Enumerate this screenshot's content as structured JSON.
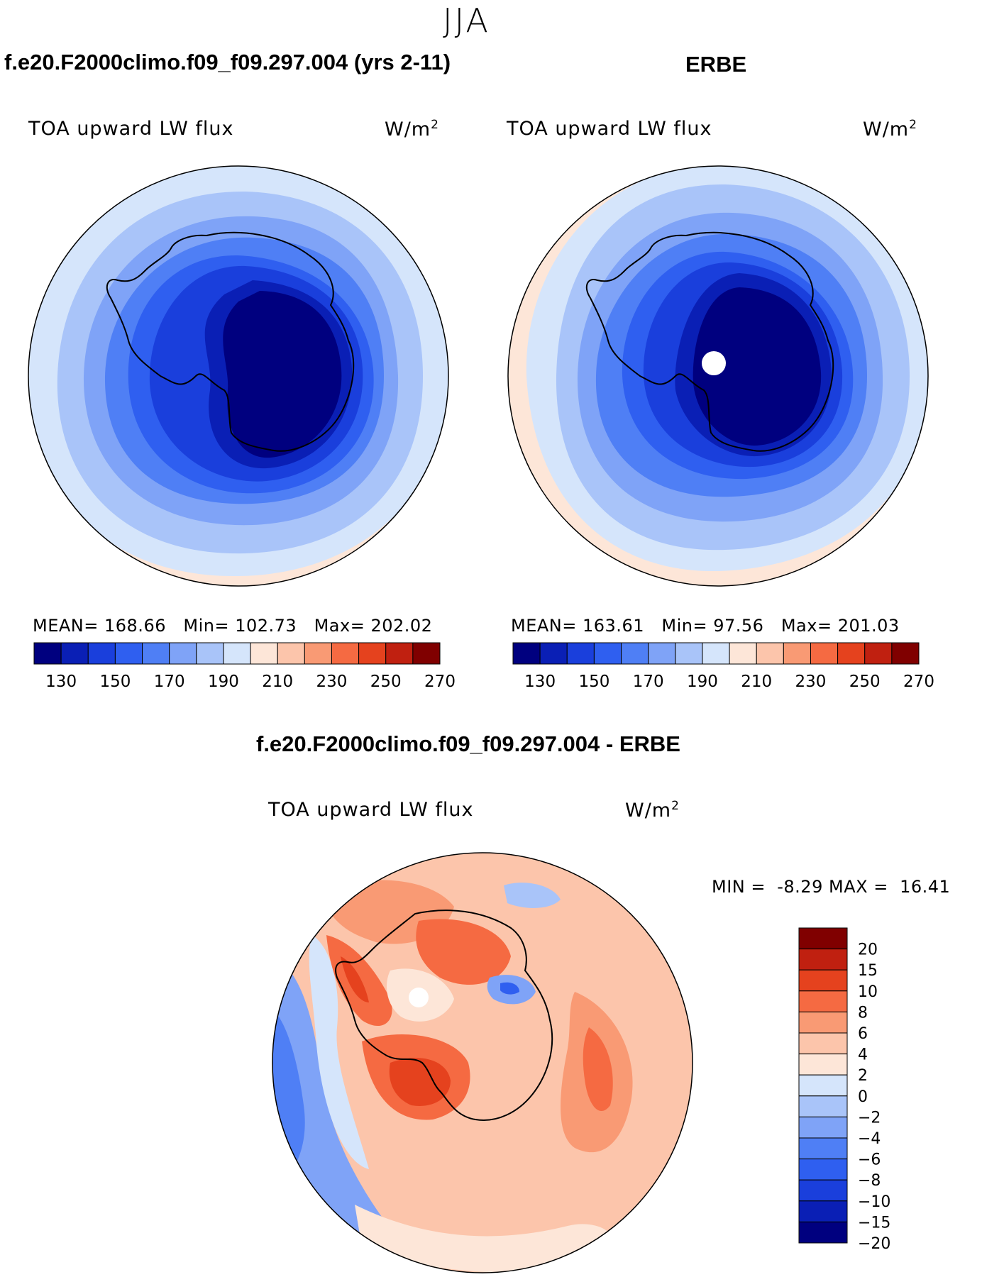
{
  "figure": {
    "season": "JJA",
    "diff_title": "f.e20.F2000climo.f09_f09.297.004 - ERBE"
  },
  "panels": [
    {
      "title": "f.e20.F2000climo.f09_f09.297.004 (yrs 2-11)",
      "variable": "TOA upward LW flux",
      "units": "W/m",
      "units_exp": "2",
      "stats": {
        "mean_label": "MEAN=",
        "mean": "168.66",
        "min_label": "Min=",
        "min": "102.73",
        "max_label": "Max=",
        "max": "202.02"
      }
    },
    {
      "title": "ERBE",
      "variable": "TOA upward LW flux",
      "units": "W/m",
      "units_exp": "2",
      "stats": {
        "mean_label": "MEAN=",
        "mean": "163.61",
        "min_label": "Min=",
        "min": "97.56",
        "max_label": "Max=",
        "max": "201.03"
      }
    },
    {
      "variable": "TOA upward LW flux",
      "units": "W/m",
      "units_exp": "2",
      "stats_text": {
        "min_label": "MIN =",
        "min": "-8.29",
        "max_label": "MAX =",
        "max": "16.41"
      }
    }
  ],
  "colors": {
    "abs_scale": [
      "#00007f",
      "#0a1fb5",
      "#1a3fdc",
      "#2f5ff0",
      "#4f7ff5",
      "#7fa3f7",
      "#a9c4f9",
      "#d5e5fb",
      "#fde6d8",
      "#fcc5ab",
      "#f99a74",
      "#f56a42",
      "#e5421e",
      "#c02010",
      "#800000"
    ],
    "diff_scale": [
      "#00007f",
      "#0a1fb5",
      "#1a3fdc",
      "#2f5ff0",
      "#4f7ff5",
      "#7fa3f7",
      "#a9c4f9",
      "#d5e5fb",
      "#fde6d8",
      "#fcc5ab",
      "#f99a74",
      "#f56a42",
      "#e5421e",
      "#c02010",
      "#800000"
    ],
    "missing": "#ffffff",
    "coast": "#000000"
  },
  "chart_data": [
    {
      "type": "heatmap",
      "projection": "south polar stereographic",
      "title": "f.e20.F2000climo.f09_f09.297.004 (yrs 2-11)",
      "variable": "TOA upward LW flux",
      "units": "W/m2",
      "levels": [
        130,
        140,
        150,
        160,
        170,
        180,
        190,
        200,
        210,
        220,
        230,
        240,
        250,
        260
      ],
      "colorbar_tick_labels": [
        "130",
        "150",
        "170",
        "190",
        "210",
        "230",
        "250",
        "270"
      ],
      "mean": 168.66,
      "min": 102.73,
      "max": 202.02,
      "approx_field_by_region": {
        "east_antarctic_plateau": 115,
        "antarctic_coast": 145,
        "southern_ocean_60S": 165,
        "ocean_50S": 180,
        "outer_edge_40S": 195
      }
    },
    {
      "type": "heatmap",
      "projection": "south polar stereographic",
      "title": "ERBE",
      "variable": "TOA upward LW flux",
      "units": "W/m2",
      "levels": [
        130,
        140,
        150,
        160,
        170,
        180,
        190,
        200,
        210,
        220,
        230,
        240,
        250,
        260
      ],
      "colorbar_tick_labels": [
        "130",
        "150",
        "170",
        "190",
        "210",
        "230",
        "250",
        "270"
      ],
      "mean": 163.61,
      "min": 97.56,
      "max": 201.03,
      "approx_field_by_region": {
        "east_antarctic_plateau": 110,
        "antarctic_coast": 140,
        "southern_ocean_60S": 160,
        "ocean_50S": 178,
        "outer_edge_40S": 200
      },
      "missing_region": "south pole"
    },
    {
      "type": "heatmap",
      "projection": "south polar stereographic",
      "title": "f.e20.F2000climo.f09_f09.297.004 - ERBE",
      "variable": "TOA upward LW flux",
      "units": "W/m2",
      "levels": [
        -20,
        -15,
        -10,
        -8,
        -6,
        -4,
        -2,
        0,
        2,
        4,
        6,
        8,
        10,
        15,
        20
      ],
      "colorbar_tick_labels": [
        "20",
        "15",
        "10",
        "8",
        "6",
        "4",
        "2",
        "0",
        "−2",
        "−4",
        "−6",
        "−8",
        "−10",
        "−15",
        "−20"
      ],
      "min": -8.29,
      "max": 16.41,
      "approx_field_by_region": {
        "west_antarctica": 12,
        "east_antarctic_interior": 6,
        "indian_ocean_sector": 5,
        "atlantic_sector_edge": -6,
        "pacific_sector": 3
      },
      "missing_region": "south pole"
    }
  ]
}
